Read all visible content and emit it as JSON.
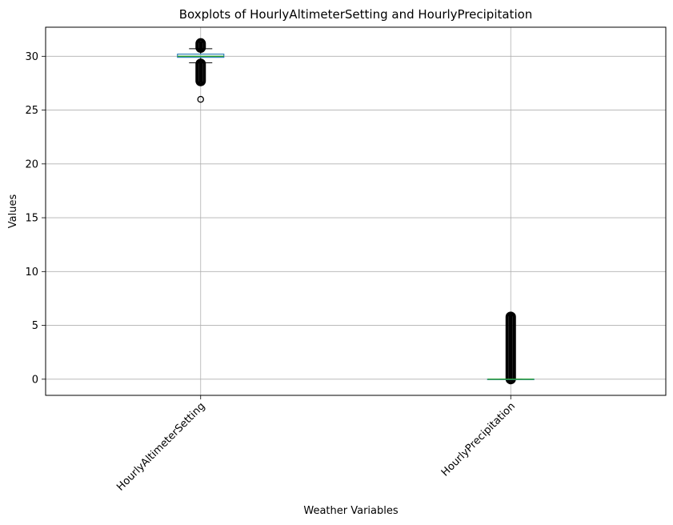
{
  "chart_data": {
    "type": "boxplot",
    "title": "Boxplots of HourlyAltimeterSetting and HourlyPrecipitation",
    "xlabel": "Weather Variables",
    "ylabel": "Values",
    "ylim": [
      -1.5,
      32.7
    ],
    "yticks": [
      0,
      5,
      10,
      15,
      20,
      25,
      30
    ],
    "grid": true,
    "categories": [
      "HourlyAltimeterSetting",
      "HourlyPrecipitation"
    ],
    "series": [
      {
        "category": "HourlyAltimeterSetting",
        "q1": 29.9,
        "median": 30.0,
        "q3": 30.2,
        "whisker_low": 29.4,
        "whisker_high": 30.7,
        "outliers_low_band": [
          27.7,
          29.3
        ],
        "outliers_high_band": [
          30.8,
          31.2
        ],
        "outliers": [
          26.0
        ]
      },
      {
        "category": "HourlyPrecipitation",
        "q1": 0.0,
        "median": 0.0,
        "q3": 0.0,
        "whisker_low": 0.0,
        "whisker_high": 0.0,
        "outliers_high_band": [
          0.01,
          5.8
        ],
        "outliers": []
      }
    ],
    "colors": {
      "box": "#1f77b4",
      "median": "#2ca02c",
      "whisker": "#000000",
      "grid": "#b0b0b0",
      "flier": "#000000"
    }
  }
}
